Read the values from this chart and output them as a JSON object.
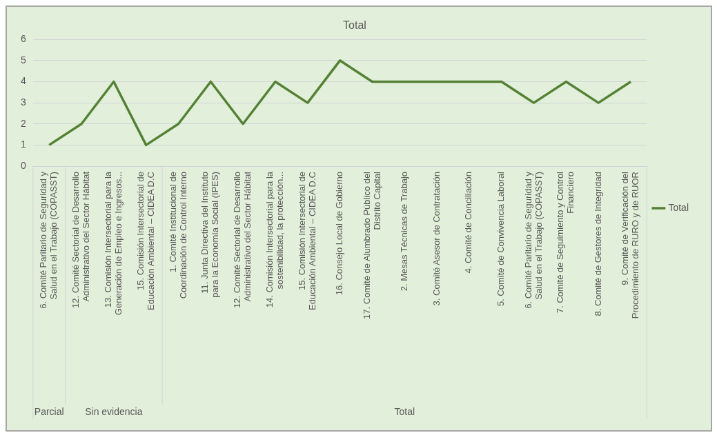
{
  "chart_data": {
    "type": "line",
    "title": "Total",
    "categories": [
      "6. Comité Paritario de Seguridad y Salud en el Trabajo (COPASST)",
      "12. Comité Sectorial de Desarrollo Administrativo del Sector Hábitat",
      "13. Comisión Intersectorial para la Generación de Empleo e Ingresos...",
      "15. Comisión Intersectorial de Educación Ambiental – CIDEA D.C",
      "1. Comité Institucional de Coordinación de Control Interno",
      "11. Junta Directiva del Instituto para la Economía Social (IPES)",
      "12. Comité Sectorial de Desarrollo Administrativo del Sector Hábitat",
      "14. Comisión Intersectorial para la sostenibilidad, la protección...",
      "15. Comisión Intersectorial de Educación Ambiental – CIDEA D.C",
      "16. Consejo Local de Gobierno",
      "17. Comité de Alumbrado Público del Distrito Capital",
      "2. Mesas Técnicas de Trabajo",
      "3. Comité Asesor de Contratación",
      "4. Comité de Conciliación",
      "5. Comité de Convivencia Laboral",
      "6. Comité Paritario de Seguridad y Salud en el Trabajo (COPASST)",
      "7. Comité de Seguimiento y Control Financiero",
      "8. Comité de Gestores de Integridad",
      "9. Comité de Verificación del Procedimiento de RURO y de RUOR"
    ],
    "series": [
      {
        "name": "Total",
        "color": "#548235",
        "values": [
          1,
          2,
          4,
          1,
          2,
          4,
          2,
          4,
          3,
          5,
          4,
          4,
          4,
          4,
          4,
          3,
          4,
          3,
          4
        ]
      }
    ],
    "ylim": [
      0,
      6
    ],
    "yticks": [
      0,
      1,
      2,
      3,
      4,
      5,
      6
    ],
    "grid": "y",
    "legend": "right",
    "marker": "none",
    "line_style": "solid",
    "annotations": [
      "Parcial",
      "Sin evidencia",
      "Total"
    ]
  }
}
